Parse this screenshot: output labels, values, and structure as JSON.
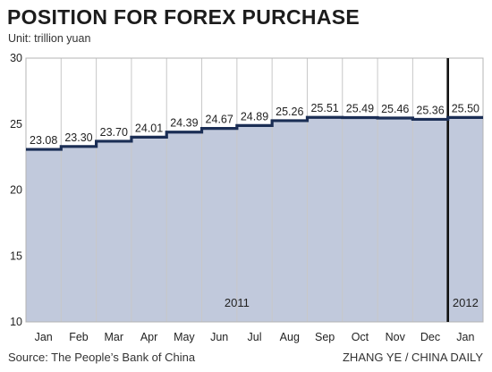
{
  "page": {
    "title": "POSITION FOR FOREX PURCHASE",
    "unit_label": "Unit: trillion yuan",
    "source": "Source: The People’s Bank of China",
    "credit": "ZHANG YE / CHINA DAILY"
  },
  "colors": {
    "area_fill": "#c1c9dc",
    "step_line": "#1b2e55",
    "grid": "#c8c8c8",
    "frame": "#b4b4b4",
    "divider": "#111111",
    "text": "#222222"
  },
  "chart_data": {
    "type": "area",
    "style": "step",
    "title": "POSITION FOR FOREX PURCHASE",
    "subtitle": "Unit: trillion yuan",
    "categories": [
      "Jan",
      "Feb",
      "Mar",
      "Apr",
      "May",
      "Jun",
      "Jul",
      "Aug",
      "Sep",
      "Oct",
      "Nov",
      "Dec",
      "Jan"
    ],
    "values": [
      23.08,
      23.3,
      23.7,
      24.01,
      24.39,
      24.67,
      24.89,
      25.26,
      25.51,
      25.49,
      25.46,
      25.36,
      25.5
    ],
    "data_labels": [
      "23.08",
      "23.30",
      "23.70",
      "24.01",
      "24.39",
      "24.67",
      "24.89",
      "25.26",
      "25.51",
      "25.49",
      "25.46",
      "25.36",
      "25.50"
    ],
    "ylim": [
      10,
      30
    ],
    "yticks": [
      10,
      15,
      20,
      25,
      30
    ],
    "grid": "vertical",
    "year_labels": [
      {
        "text": "2011",
        "category_index": 5.5
      },
      {
        "text": "2012",
        "category_index": 12
      }
    ],
    "divider_after_index": 11
  }
}
